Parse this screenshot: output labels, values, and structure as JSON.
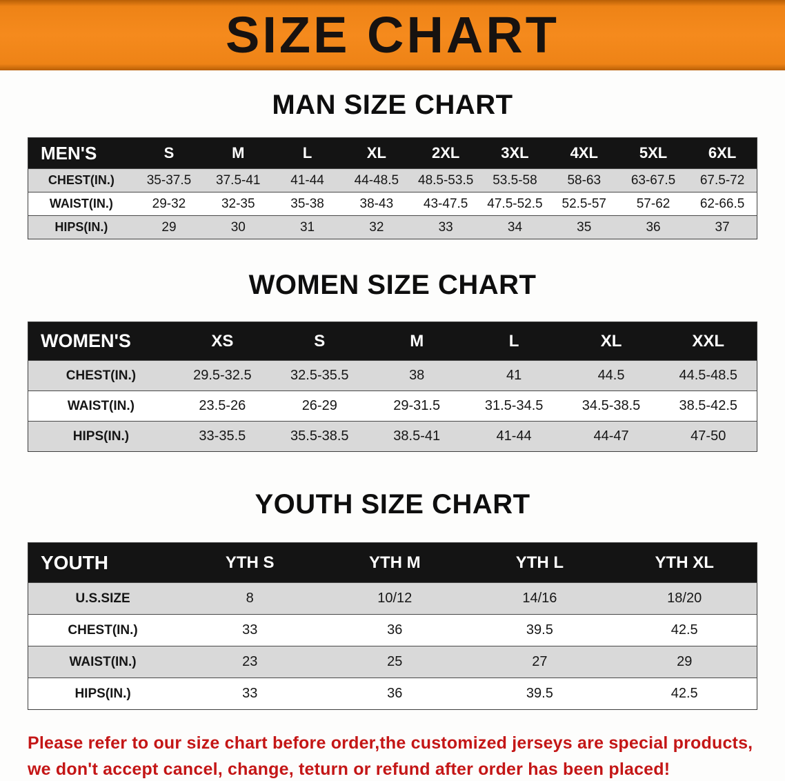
{
  "colors": {
    "banner-orange": "#f58a1d",
    "header-black": "#141414",
    "row-gray": "#d9d9d9",
    "row-white": "#ffffff",
    "notice-red": "#c41616"
  },
  "page": {
    "banner_title": "SIZE CHART"
  },
  "men": {
    "heading": "MAN SIZE CHART",
    "table": {
      "header": [
        "MEN'S",
        "S",
        "M",
        "L",
        "XL",
        "2XL",
        "3XL",
        "4XL",
        "5XL",
        "6XL"
      ],
      "rows": [
        [
          "CHEST(IN.)",
          "35-37.5",
          "37.5-41",
          "41-44",
          "44-48.5",
          "48.5-53.5",
          "53.5-58",
          "58-63",
          "63-67.5",
          "67.5-72"
        ],
        [
          "WAIST(IN.)",
          "29-32",
          "32-35",
          "35-38",
          "38-43",
          "43-47.5",
          "47.5-52.5",
          "52.5-57",
          "57-62",
          "62-66.5"
        ],
        [
          "HIPS(IN.)",
          "29",
          "30",
          "31",
          "32",
          "33",
          "34",
          "35",
          "36",
          "37"
        ]
      ]
    }
  },
  "women": {
    "heading": "WOMEN SIZE CHART",
    "table": {
      "header": [
        "WOMEN'S",
        "XS",
        "S",
        "M",
        "L",
        "XL",
        "XXL"
      ],
      "rows": [
        [
          "CHEST(IN.)",
          "29.5-32.5",
          "32.5-35.5",
          "38",
          "41",
          "44.5",
          "44.5-48.5"
        ],
        [
          "WAIST(IN.)",
          "23.5-26",
          "26-29",
          "29-31.5",
          "31.5-34.5",
          "34.5-38.5",
          "38.5-42.5"
        ],
        [
          "HIPS(IN.)",
          "33-35.5",
          "35.5-38.5",
          "38.5-41",
          "41-44",
          "44-47",
          "47-50"
        ]
      ]
    }
  },
  "youth": {
    "heading": "YOUTH SIZE CHART",
    "table": {
      "header": [
        "YOUTH",
        "YTH S",
        "YTH M",
        "YTH L",
        "YTH XL"
      ],
      "rows": [
        [
          "U.S.SIZE",
          "8",
          "10/12",
          "14/16",
          "18/20"
        ],
        [
          "CHEST(IN.)",
          "33",
          "36",
          "39.5",
          "42.5"
        ],
        [
          "WAIST(IN.)",
          "23",
          "25",
          "27",
          "29"
        ],
        [
          "HIPS(IN.)",
          "33",
          "36",
          "39.5",
          "42.5"
        ]
      ]
    }
  },
  "footer": {
    "line1": "Please refer to our size chart before order,the customized jerseys are special products,",
    "line2": "we don't accept cancel, change, teturn or refund after order has been placed!"
  }
}
